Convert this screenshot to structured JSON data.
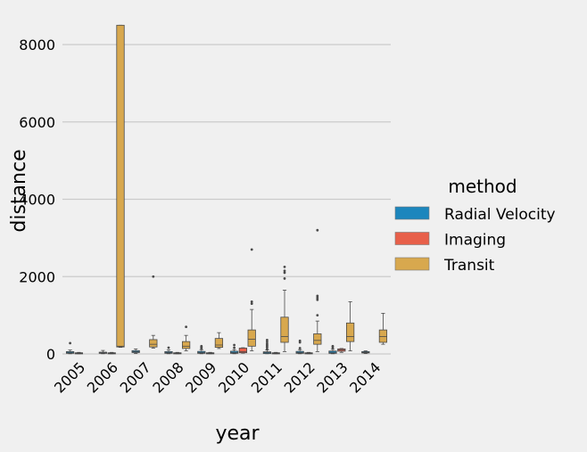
{
  "chart_data": {
    "type": "box",
    "xlabel": "year",
    "ylabel": "distance",
    "ylim": [
      -90,
      8600
    ],
    "yticks": [
      0,
      2000,
      4000,
      6000,
      8000
    ],
    "categories": [
      "2005",
      "2006",
      "2007",
      "2008",
      "2009",
      "2010",
      "2011",
      "2012",
      "2013",
      "2014"
    ],
    "legend_title": "method",
    "legend_position": "center-right",
    "grid": "horizontal",
    "series": [
      {
        "name": "Radial Velocity",
        "color": "#1c86bd",
        "boxes": [
          {
            "year": "2005",
            "min": 5,
            "q1": 15,
            "median": 40,
            "q3": 60,
            "max": 100,
            "outliers": [
              280
            ]
          },
          {
            "year": "2006",
            "min": 5,
            "q1": 15,
            "median": 28,
            "q3": 45,
            "max": 90,
            "outliers": []
          },
          {
            "year": "2007",
            "min": 10,
            "q1": 35,
            "median": 55,
            "q3": 85,
            "max": 130,
            "outliers": []
          },
          {
            "year": "2008",
            "min": 5,
            "q1": 15,
            "median": 35,
            "q3": 60,
            "max": 100,
            "outliers": [
              160
            ]
          },
          {
            "year": "2009",
            "min": 5,
            "q1": 15,
            "median": 35,
            "q3": 65,
            "max": 110,
            "outliers": [
              140,
              170,
              200
            ]
          },
          {
            "year": "2010",
            "min": 5,
            "q1": 15,
            "median": 35,
            "q3": 70,
            "max": 110,
            "outliers": [
              160,
              230
            ]
          },
          {
            "year": "2011",
            "min": 5,
            "q1": 10,
            "median": 30,
            "q3": 55,
            "max": 100,
            "outliers": [
              130,
              180,
              220,
              260,
              310,
              360
            ]
          },
          {
            "year": "2012",
            "min": 5,
            "q1": 15,
            "median": 35,
            "q3": 65,
            "max": 110,
            "outliers": [
              150,
              300,
              340
            ]
          },
          {
            "year": "2013",
            "min": 5,
            "q1": 15,
            "median": 40,
            "q3": 75,
            "max": 120,
            "outliers": [
              160,
              200
            ]
          },
          {
            "year": "2014",
            "min": 10,
            "q1": 25,
            "median": 40,
            "q3": 60,
            "max": 80,
            "outliers": []
          }
        ]
      },
      {
        "name": "Imaging",
        "color": "#e8604a",
        "boxes": [
          {
            "year": "2005",
            "min": 5,
            "q1": 10,
            "median": 20,
            "q3": 30,
            "max": 40,
            "outliers": []
          },
          {
            "year": "2006",
            "min": 5,
            "q1": 10,
            "median": 20,
            "q3": 30,
            "max": 40,
            "outliers": []
          },
          {
            "year": "2008",
            "min": 5,
            "q1": 10,
            "median": 20,
            "q3": 30,
            "max": 40,
            "outliers": []
          },
          {
            "year": "2009",
            "min": 5,
            "q1": 10,
            "median": 20,
            "q3": 30,
            "max": 40,
            "outliers": []
          },
          {
            "year": "2010",
            "min": 20,
            "q1": 30,
            "median": 60,
            "q3": 150,
            "max": 160,
            "outliers": []
          },
          {
            "year": "2011",
            "min": 5,
            "q1": 10,
            "median": 20,
            "q3": 30,
            "max": 40,
            "outliers": []
          },
          {
            "year": "2012",
            "min": 5,
            "q1": 10,
            "median": 20,
            "q3": 30,
            "max": 40,
            "outliers": []
          },
          {
            "year": "2013",
            "min": 40,
            "q1": 70,
            "median": 100,
            "q3": 130,
            "max": 140,
            "outliers": []
          }
        ]
      },
      {
        "name": "Transit",
        "color": "#d8a84e",
        "boxes": [
          {
            "year": "2006",
            "min": 170,
            "q1": 180,
            "median": 200,
            "q3": 8500,
            "max": 8500,
            "outliers": []
          },
          {
            "year": "2007",
            "min": 150,
            "q1": 180,
            "median": 250,
            "q3": 370,
            "max": 480,
            "outliers": [
              2000
            ]
          },
          {
            "year": "2008",
            "min": 80,
            "q1": 140,
            "median": 200,
            "q3": 320,
            "max": 480,
            "outliers": [
              700
            ]
          },
          {
            "year": "2009",
            "min": 140,
            "q1": 170,
            "median": 230,
            "q3": 400,
            "max": 550,
            "outliers": []
          },
          {
            "year": "2010",
            "min": 80,
            "q1": 200,
            "median": 380,
            "q3": 620,
            "max": 1150,
            "outliers": [
              1300,
              1350,
              2700
            ]
          },
          {
            "year": "2011",
            "min": 60,
            "q1": 300,
            "median": 450,
            "q3": 950,
            "max": 1650,
            "outliers": [
              1950,
              2100,
              2150,
              2250
            ]
          },
          {
            "year": "2012",
            "min": 60,
            "q1": 250,
            "median": 350,
            "q3": 520,
            "max": 850,
            "outliers": [
              1000,
              1400,
              1450,
              1500,
              3200
            ]
          },
          {
            "year": "2013",
            "min": 80,
            "q1": 320,
            "median": 450,
            "q3": 800,
            "max": 1350,
            "outliers": []
          },
          {
            "year": "2014",
            "min": 250,
            "q1": 300,
            "median": 450,
            "q3": 620,
            "max": 1050,
            "outliers": []
          }
        ]
      }
    ]
  }
}
